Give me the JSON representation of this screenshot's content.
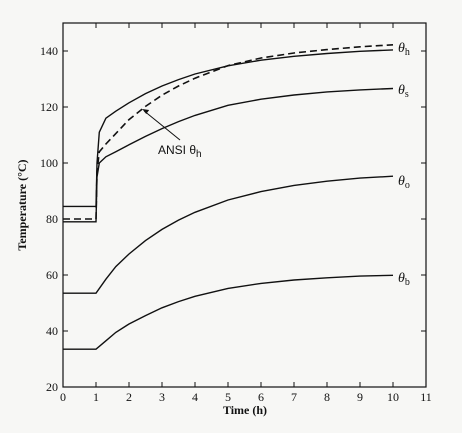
{
  "chart_data": {
    "type": "line",
    "xlabel": "Time (h)",
    "ylabel": "Temperature (°C)",
    "xlim": [
      0,
      11
    ],
    "ylim": [
      20,
      150
    ],
    "xticks": [
      0,
      1,
      2,
      3,
      4,
      5,
      6,
      7,
      8,
      9,
      10,
      11
    ],
    "yticks": [
      20,
      40,
      60,
      80,
      100,
      120,
      140
    ],
    "grid": false,
    "legend": "none",
    "series": [
      {
        "name": "θh",
        "symbol": "θ",
        "sub": "h",
        "style": "solid",
        "x": [
          0,
          1,
          1.03,
          1.1,
          1.3,
          1.6,
          2,
          2.5,
          3,
          3.5,
          4,
          5,
          6,
          7,
          8,
          9,
          10
        ],
        "y": [
          84.5,
          84.5,
          100,
          111,
          116,
          118.5,
          121.5,
          124.8,
          127.5,
          129.8,
          131.8,
          134.7,
          136.7,
          138.1,
          139.1,
          139.9,
          140.4
        ]
      },
      {
        "name": "ANSI θh",
        "style": "dashed",
        "x": [
          0,
          1,
          1.03,
          1.1,
          1.3,
          1.6,
          2,
          2.5,
          3,
          3.5,
          4,
          5,
          6,
          7,
          8,
          9,
          10
        ],
        "y": [
          80,
          80,
          97,
          104,
          106.8,
          110.5,
          115.5,
          120.2,
          124.2,
          127.5,
          130.3,
          134.8,
          137.5,
          139.3,
          140.5,
          141.5,
          142.2
        ]
      },
      {
        "name": "θs",
        "symbol": "θ",
        "sub": "s",
        "style": "solid",
        "x": [
          0,
          1,
          1.03,
          1.1,
          1.3,
          1.6,
          2,
          2.5,
          3,
          3.5,
          4,
          5,
          6,
          7,
          8,
          9,
          10
        ],
        "y": [
          79,
          79,
          95,
          100,
          102.2,
          104,
          106.5,
          109.5,
          112.3,
          114.8,
          117,
          120.6,
          122.8,
          124.3,
          125.4,
          126.1,
          126.6
        ]
      },
      {
        "name": "θo",
        "symbol": "θ",
        "sub": "o",
        "style": "solid",
        "x": [
          0,
          1,
          1.3,
          1.6,
          2,
          2.5,
          3,
          3.5,
          4,
          5,
          6,
          7,
          8,
          9,
          10
        ],
        "y": [
          53.5,
          53.5,
          58.5,
          63,
          67.5,
          72.3,
          76.3,
          79.6,
          82.4,
          86.8,
          89.8,
          92,
          93.5,
          94.6,
          95.3
        ]
      },
      {
        "name": "θb",
        "symbol": "θ",
        "sub": "b",
        "style": "solid",
        "x": [
          0,
          1,
          1.3,
          1.6,
          2,
          2.5,
          3,
          3.5,
          4,
          5,
          6,
          7,
          8,
          9,
          10
        ],
        "y": [
          33.5,
          33.5,
          36.5,
          39.5,
          42.5,
          45.5,
          48.3,
          50.5,
          52.4,
          55.2,
          57,
          58.2,
          59,
          59.6,
          59.9
        ]
      }
    ],
    "annotations": [
      {
        "symbol": "ANSI θ",
        "sub": "h",
        "points_to_x": 2.4,
        "points_to_y": 119.3
      }
    ]
  }
}
